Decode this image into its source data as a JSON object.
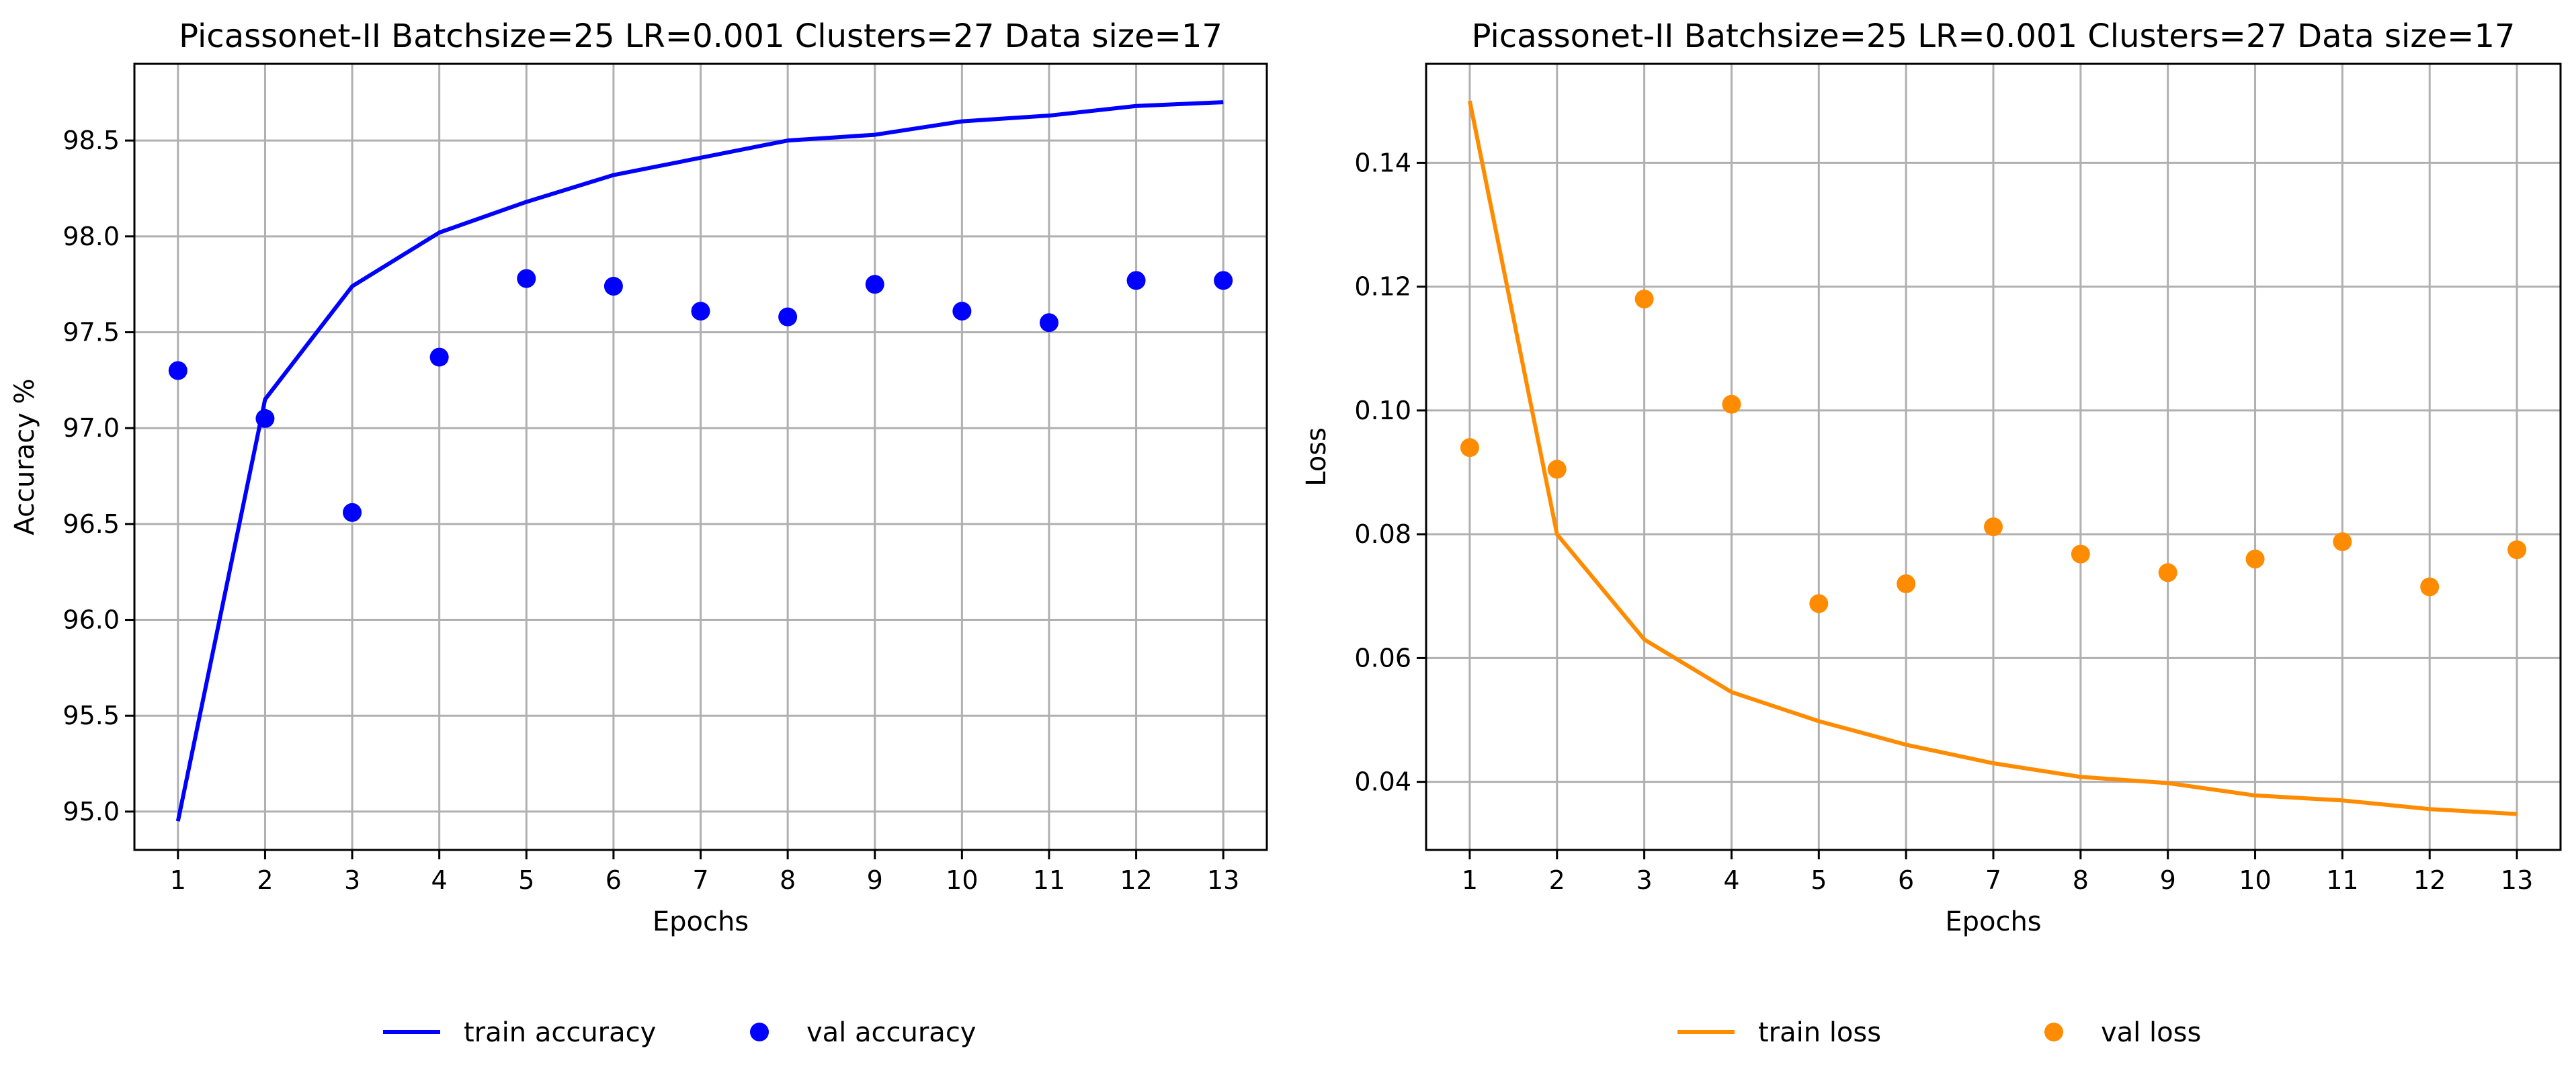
{
  "chart_data": [
    {
      "type": "line",
      "title": "Picassonet-II Batchsize=25 LR=0.001 Clusters=27 Data size=17",
      "xlabel": "Epochs",
      "ylabel": "Accuracy %",
      "xlim": [
        0.5,
        13.5
      ],
      "ylim": [
        94.8,
        98.9
      ],
      "xticks": [
        "1",
        "2",
        "3",
        "4",
        "5",
        "6",
        "7",
        "8",
        "9",
        "10",
        "11",
        "12",
        "13"
      ],
      "yticks": [
        "95.0",
        "95.5",
        "96.0",
        "96.5",
        "97.0",
        "97.5",
        "98.0",
        "98.5"
      ],
      "grid": true,
      "legend_placement": "bottom-center",
      "x": [
        1,
        2,
        3,
        4,
        5,
        6,
        7,
        8,
        9,
        10,
        11,
        12,
        13
      ],
      "series": [
        {
          "name": "train accuracy",
          "kind": "line",
          "color": "#0000ff",
          "values": [
            94.95,
            97.15,
            97.74,
            98.02,
            98.18,
            98.32,
            98.41,
            98.5,
            98.53,
            98.6,
            98.63,
            98.68,
            98.7
          ]
        },
        {
          "name": "val accuracy",
          "kind": "scatter",
          "color": "#0000ff",
          "values": [
            97.3,
            97.05,
            96.56,
            97.37,
            97.78,
            97.74,
            97.61,
            97.58,
            97.75,
            97.61,
            97.55,
            97.77,
            97.77
          ]
        }
      ]
    },
    {
      "type": "line",
      "title": "Picassonet-II Batchsize=25 LR=0.001 Clusters=27 Data size=17",
      "xlabel": "Epochs",
      "ylabel": "Loss",
      "xlim": [
        0.5,
        13.5
      ],
      "ylim": [
        0.029,
        0.156
      ],
      "xticks": [
        "1",
        "2",
        "3",
        "4",
        "5",
        "6",
        "7",
        "8",
        "9",
        "10",
        "11",
        "12",
        "13"
      ],
      "yticks": [
        "0.04",
        "0.06",
        "0.08",
        "0.10",
        "0.12",
        "0.14"
      ],
      "grid": true,
      "legend_placement": "bottom-center",
      "x": [
        1,
        2,
        3,
        4,
        5,
        6,
        7,
        8,
        9,
        10,
        11,
        12,
        13
      ],
      "series": [
        {
          "name": "train loss",
          "kind": "line",
          "color": "#ff8c00",
          "values": [
            0.15,
            0.08,
            0.063,
            0.0545,
            0.0498,
            0.046,
            0.043,
            0.0408,
            0.0398,
            0.0378,
            0.037,
            0.0356,
            0.0348
          ]
        },
        {
          "name": "val loss",
          "kind": "scatter",
          "color": "#ff8c00",
          "values": [
            0.094,
            0.0905,
            0.118,
            0.101,
            0.0688,
            0.072,
            0.0812,
            0.0768,
            0.0738,
            0.076,
            0.0788,
            0.0715,
            0.0775
          ]
        }
      ]
    }
  ]
}
